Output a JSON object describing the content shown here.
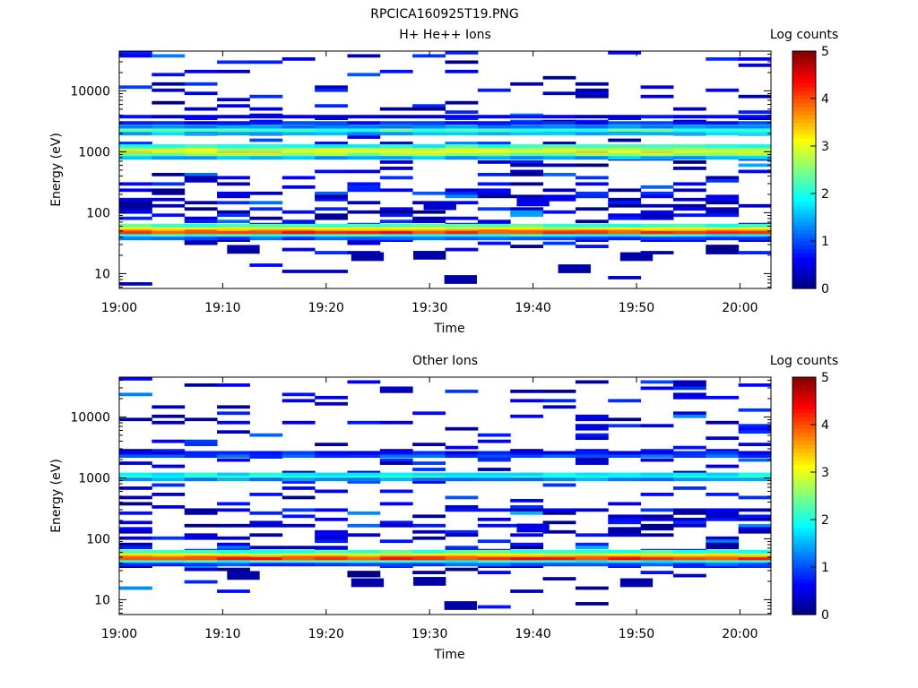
{
  "title": "RPCICA160925T19.PNG",
  "chart_data": [
    {
      "type": "heatmap",
      "title": "H+ He++ Ions",
      "xlabel": "Time",
      "ylabel": "Energy (eV)",
      "x_ticks": [
        "19:00",
        "19:10",
        "19:20",
        "19:30",
        "19:40",
        "19:50",
        "20:00"
      ],
      "x_range": [
        "19:00",
        "20:03"
      ],
      "y_scale": "log",
      "y_ticks": [
        "10",
        "100",
        "1000",
        "10000"
      ],
      "y_range": [
        5.7,
        45000
      ],
      "grid": false,
      "colorbar": {
        "label": "Log counts",
        "ticks": [
          "0",
          "1",
          "2",
          "3",
          "4",
          "5"
        ],
        "range": [
          0,
          5
        ],
        "colormap": "jet"
      },
      "energy_bands_eV": [
        {
          "energy": 52,
          "level": 3.7
        },
        {
          "energy": 47,
          "level": 4.1
        },
        {
          "energy": 57,
          "level": 3.0
        },
        {
          "energy": 62,
          "level": 2.2
        },
        {
          "energy": 42,
          "level": 2.0
        },
        {
          "energy": 38,
          "level": 1.0
        },
        {
          "energy": 1000,
          "level": 3.2
        },
        {
          "energy": 1100,
          "level": 2.8
        },
        {
          "energy": 900,
          "level": 2.5
        },
        {
          "energy": 1250,
          "level": 2.0
        },
        {
          "energy": 800,
          "level": 1.5
        },
        {
          "energy": 2300,
          "level": 2.2
        },
        {
          "energy": 2000,
          "level": 1.5
        },
        {
          "energy": 2600,
          "level": 1.3
        },
        {
          "energy": 3000,
          "level": 0.8
        },
        {
          "energy": 3800,
          "level": 0.5
        }
      ],
      "sporadic_counts": [
        {
          "time": "19:33",
          "energy": 8,
          "level": 0.2
        },
        {
          "time": "19:30",
          "energy": 20,
          "level": 0.2
        },
        {
          "time": "19:12",
          "energy": 25,
          "level": 0.2
        },
        {
          "time": "19:44",
          "energy": 12,
          "level": 0.2
        },
        {
          "time": "19:50",
          "energy": 19,
          "level": 0.2
        },
        {
          "time": "19:24",
          "energy": 19,
          "level": 0.2
        },
        {
          "time": "19:40",
          "energy": 150,
          "level": 0.5
        },
        {
          "time": "19:31",
          "energy": 130,
          "level": 0.4
        }
      ]
    },
    {
      "type": "heatmap",
      "title": "Other Ions",
      "xlabel": "Time",
      "ylabel": "Energy (eV)",
      "x_ticks": [
        "19:00",
        "19:10",
        "19:20",
        "19:30",
        "19:40",
        "19:50",
        "20:00"
      ],
      "x_range": [
        "19:00",
        "20:03"
      ],
      "y_scale": "log",
      "y_ticks": [
        "10",
        "100",
        "1000",
        "10000"
      ],
      "y_range": [
        5.7,
        45000
      ],
      "grid": false,
      "colorbar": {
        "label": "Log counts",
        "ticks": [
          "0",
          "1",
          "2",
          "3",
          "4",
          "5"
        ],
        "range": [
          0,
          5
        ],
        "colormap": "jet"
      },
      "energy_bands_eV": [
        {
          "energy": 52,
          "level": 3.7
        },
        {
          "energy": 47,
          "level": 4.1
        },
        {
          "energy": 57,
          "level": 3.0
        },
        {
          "energy": 62,
          "level": 2.2
        },
        {
          "energy": 42,
          "level": 2.0
        },
        {
          "energy": 38,
          "level": 1.0
        },
        {
          "energy": 1050,
          "level": 2.2
        },
        {
          "energy": 1150,
          "level": 1.8
        },
        {
          "energy": 950,
          "level": 1.3
        },
        {
          "energy": 2300,
          "level": 1.0
        },
        {
          "energy": 2600,
          "level": 0.7
        }
      ],
      "sporadic_counts": [
        {
          "time": "19:33",
          "energy": 8,
          "level": 0.2
        },
        {
          "time": "19:30",
          "energy": 20,
          "level": 0.2
        },
        {
          "time": "19:12",
          "energy": 25,
          "level": 0.2
        },
        {
          "time": "19:50",
          "energy": 19,
          "level": 0.2
        },
        {
          "time": "19:24",
          "energy": 19,
          "level": 0.2
        },
        {
          "time": "19:40",
          "energy": 150,
          "level": 0.5
        }
      ]
    }
  ]
}
